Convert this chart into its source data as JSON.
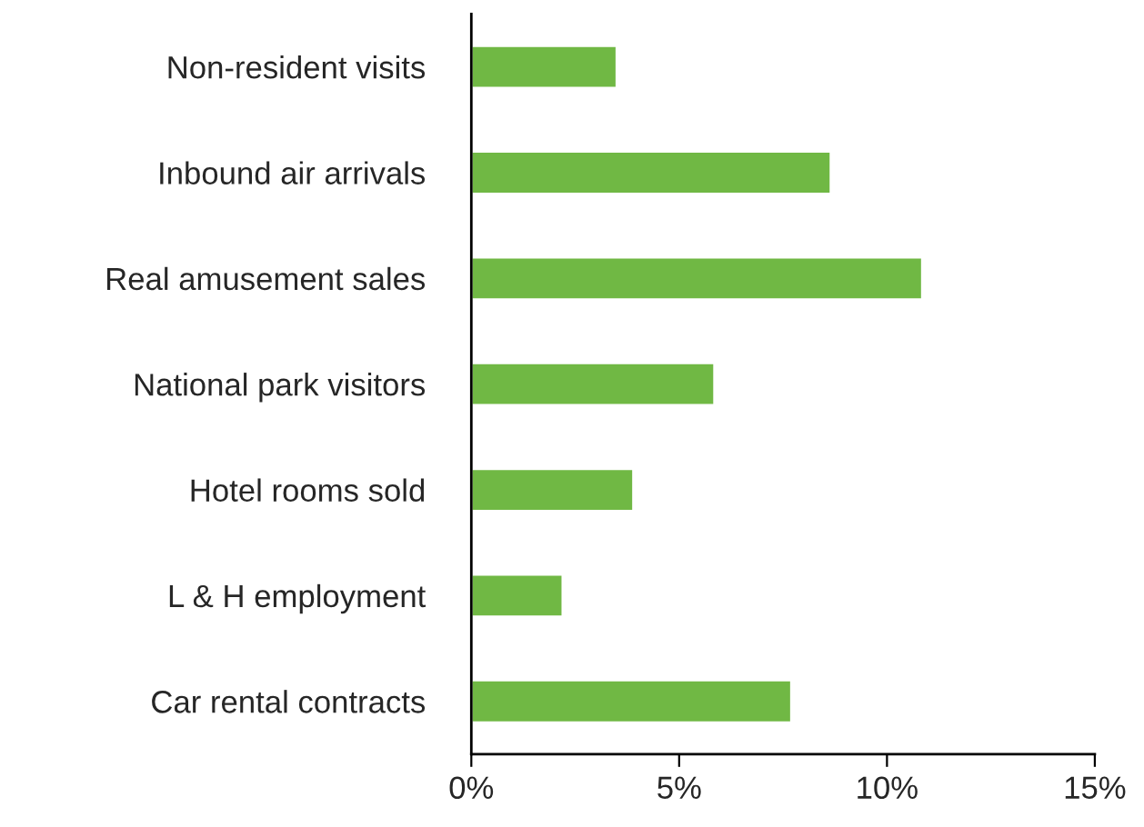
{
  "chart_data": {
    "type": "bar",
    "orientation": "horizontal",
    "categories": [
      "Non-resident visits",
      "Inbound air arrivals",
      "Real amusement sales",
      "National park visitors",
      "Hotel rooms sold",
      "L & H employment",
      "Car rental contracts"
    ],
    "values": [
      3.5,
      8.65,
      10.85,
      5.85,
      3.9,
      2.2,
      7.7
    ],
    "color": "#70b844",
    "xlim": [
      0,
      15
    ],
    "xticks": [
      {
        "value": 0,
        "label": "0%"
      },
      {
        "value": 5,
        "label": "5%"
      },
      {
        "value": 10,
        "label": "10%"
      },
      {
        "value": 15,
        "label": "15%"
      }
    ],
    "grid": false,
    "legend": false
  }
}
